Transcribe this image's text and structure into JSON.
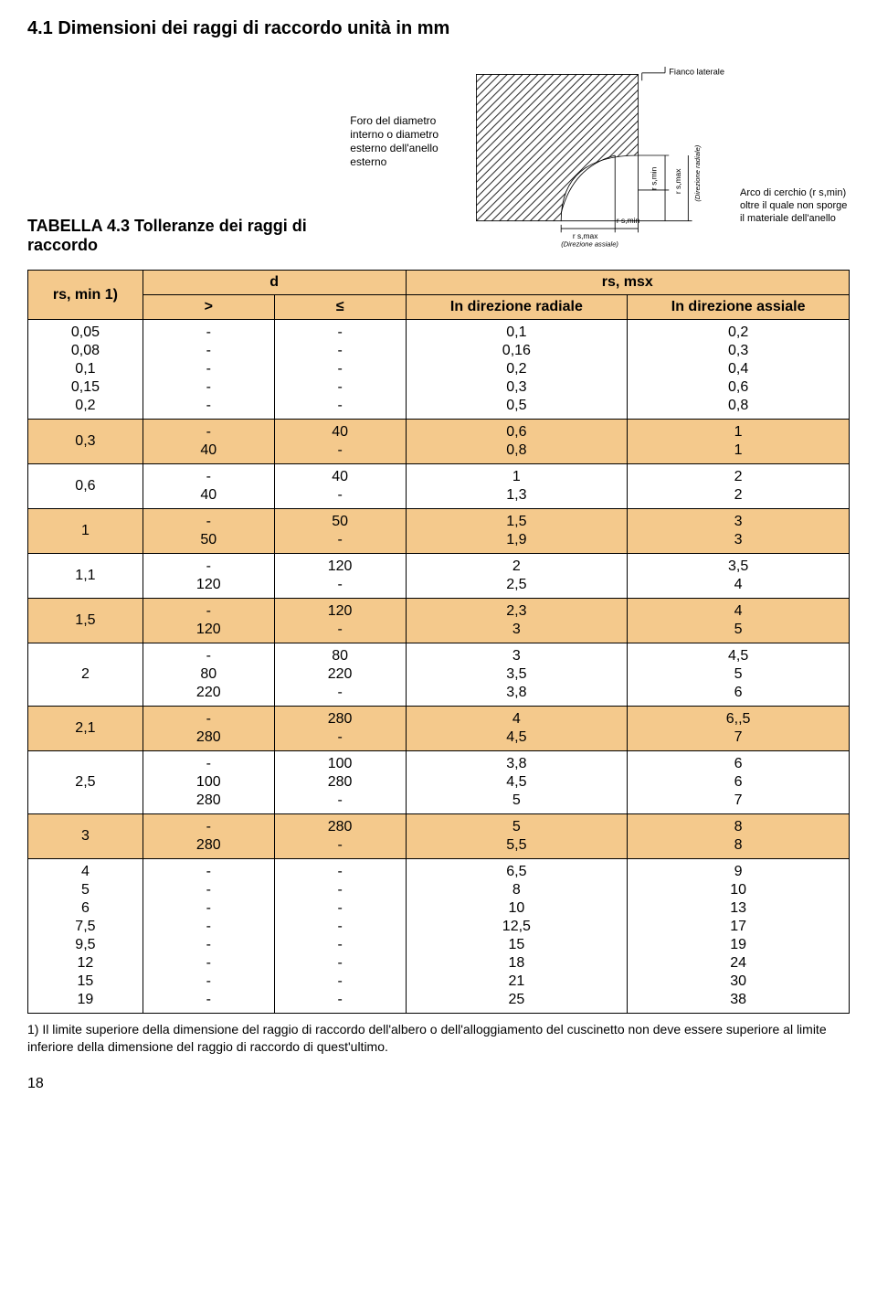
{
  "section_title": "4.1 Dimensioni dei raggi di raccordo unità in mm",
  "table_title": "TABELLA 4.3 Tolleranze dei raggi di raccordo",
  "diagram": {
    "foro_caption": "Foro del diametro interno o diametro esterno dell'anello esterno",
    "fianco": "Fianco laterale",
    "rsmax_ax": "r s,max",
    "rsmin_ax": "r s,min",
    "dir_assiale": "(Direzione assiale)",
    "rs_min_v": "r s,min",
    "rs_max_v": "r s,max",
    "dir_radiale": "(Direzione radiale)",
    "arco": "Arco di cerchio (r s,min) oltre il quale non sporge il materiale dell'anello"
  },
  "headers": {
    "rsmin": "rs, min 1)",
    "d": "d",
    "rsmsx": "rs, msx",
    "gt": ">",
    "le": "≤",
    "radiale": "In direzione radiale",
    "assiale": "In direzione assiale"
  },
  "rows": [
    {
      "band": false,
      "rsmin": [
        "0,05",
        "0,08",
        "0,1",
        "0,15",
        "0,2"
      ],
      "gt": [
        "-",
        "-",
        "-",
        "-",
        "-"
      ],
      "le": [
        "-",
        "-",
        "-",
        "-",
        "-"
      ],
      "rad": [
        "0,1",
        "0,16",
        "0,2",
        "0,3",
        "0,5"
      ],
      "ax": [
        "0,2",
        "0,3",
        "0,4",
        "0,6",
        "0,8"
      ]
    },
    {
      "band": true,
      "rsmin": [
        "0,3"
      ],
      "gt": [
        "-",
        "40"
      ],
      "le": [
        "40",
        "-"
      ],
      "rad": [
        "0,6",
        "0,8"
      ],
      "ax": [
        "1",
        "1"
      ]
    },
    {
      "band": false,
      "rsmin": [
        "0,6"
      ],
      "gt": [
        "-",
        "40"
      ],
      "le": [
        "40",
        "-"
      ],
      "rad": [
        "1",
        "1,3"
      ],
      "ax": [
        "2",
        "2"
      ]
    },
    {
      "band": true,
      "rsmin": [
        "1"
      ],
      "gt": [
        "-",
        "50"
      ],
      "le": [
        "50",
        "-"
      ],
      "rad": [
        "1,5",
        "1,9"
      ],
      "ax": [
        "3",
        "3"
      ]
    },
    {
      "band": false,
      "rsmin": [
        "1,1"
      ],
      "gt": [
        "-",
        "120"
      ],
      "le": [
        "120",
        "-"
      ],
      "rad": [
        "2",
        "2,5"
      ],
      "ax": [
        "3,5",
        "4"
      ]
    },
    {
      "band": true,
      "rsmin": [
        "1,5"
      ],
      "gt": [
        "-",
        "120"
      ],
      "le": [
        "120",
        "-"
      ],
      "rad": [
        "2,3",
        "3"
      ],
      "ax": [
        "4",
        "5"
      ]
    },
    {
      "band": false,
      "rsmin": [
        "2"
      ],
      "gt": [
        "-",
        "80",
        "220"
      ],
      "le": [
        "80",
        "220",
        "-"
      ],
      "rad": [
        "3",
        "3,5",
        "3,8"
      ],
      "ax": [
        "4,5",
        "5",
        "6"
      ]
    },
    {
      "band": true,
      "rsmin": [
        "2,1"
      ],
      "gt": [
        "-",
        "280"
      ],
      "le": [
        "280",
        "-"
      ],
      "rad": [
        "4",
        "4,5"
      ],
      "ax": [
        "6,,5",
        "7"
      ]
    },
    {
      "band": false,
      "rsmin": [
        "2,5"
      ],
      "gt": [
        "-",
        "100",
        "280"
      ],
      "le": [
        "100",
        "280",
        "-"
      ],
      "rad": [
        "3,8",
        "4,5",
        "5"
      ],
      "ax": [
        "6",
        "6",
        "7"
      ]
    },
    {
      "band": true,
      "rsmin": [
        "3"
      ],
      "gt": [
        "-",
        "280"
      ],
      "le": [
        "280",
        "-"
      ],
      "rad": [
        "5",
        "5,5"
      ],
      "ax": [
        "8",
        "8"
      ]
    },
    {
      "band": false,
      "rsmin": [
        "4",
        "5",
        "6",
        "7,5",
        "9,5",
        "12",
        "15",
        "19"
      ],
      "gt": [
        "-",
        "-",
        "-",
        "-",
        "-",
        "-",
        "-",
        "-"
      ],
      "le": [
        "-",
        "-",
        "-",
        "-",
        "-",
        "-",
        "-",
        "-"
      ],
      "rad": [
        "6,5",
        "8",
        "10",
        "12,5",
        "15",
        "18",
        "21",
        "25"
      ],
      "ax": [
        "9",
        "10",
        "13",
        "17",
        "19",
        "24",
        "30",
        "38"
      ]
    }
  ],
  "footnote": "1) Il limite superiore della dimensione del raggio di raccordo dell'albero o dell'alloggiamento del cuscinetto non deve essere superiore al limite inferiore della dimensione del raggio di raccordo di quest'ultimo.",
  "page_number": "18",
  "colors": {
    "band_bg": "#f4c98c",
    "border": "#000000",
    "page_bg": "#ffffff"
  }
}
